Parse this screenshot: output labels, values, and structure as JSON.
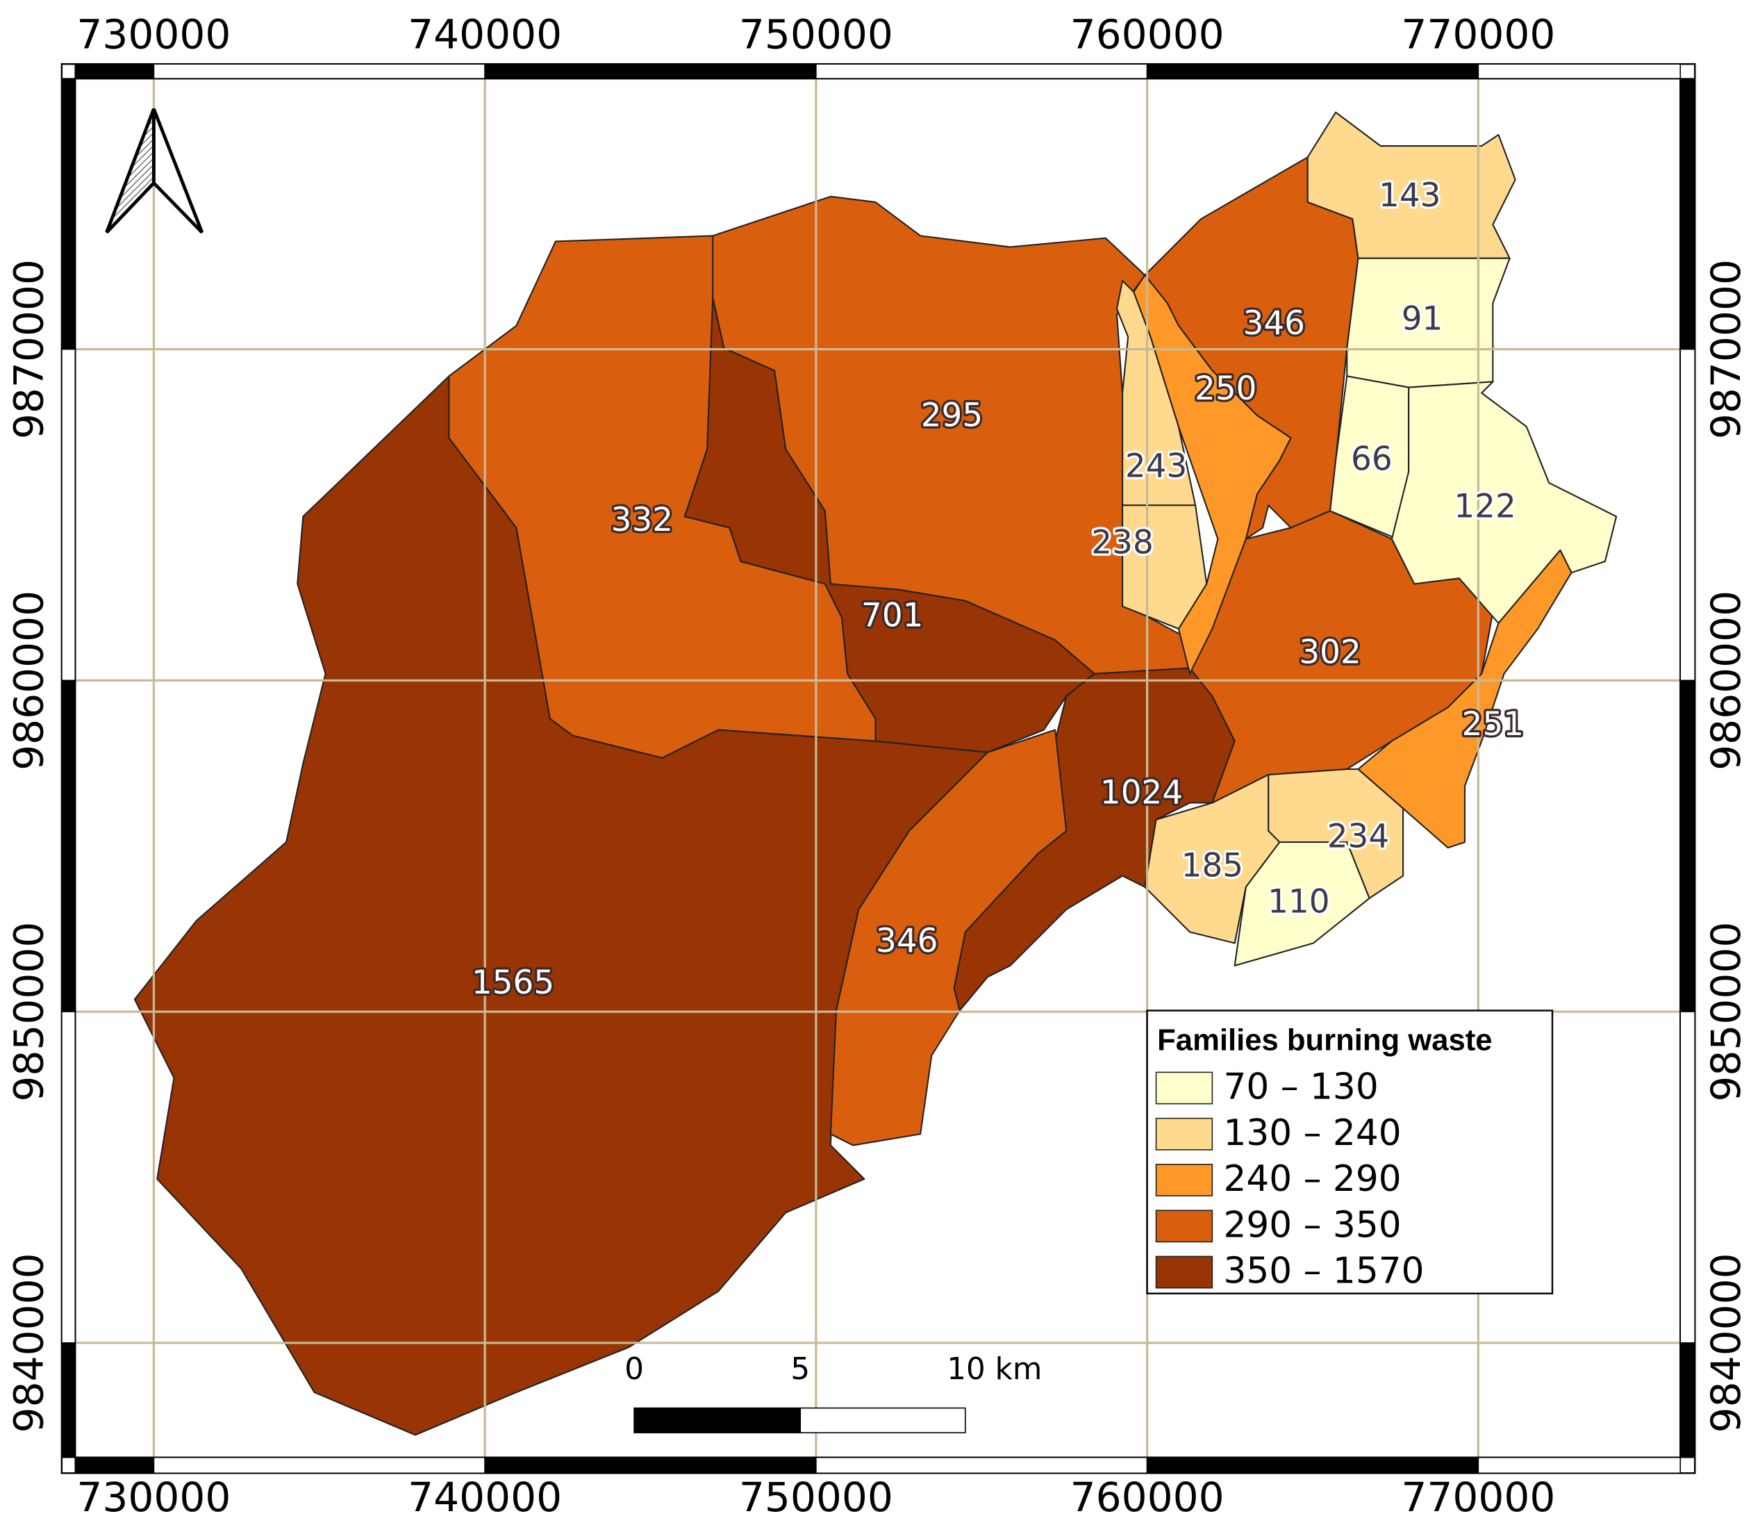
{
  "map": {
    "xlim": [
      727627,
      776102
    ],
    "ylim": [
      9836542,
      9878169
    ],
    "xticks": [
      730000,
      740000,
      750000,
      760000,
      770000
    ],
    "yticks": [
      9840000,
      9850000,
      9860000,
      9870000
    ],
    "grid": true,
    "grid_color": "#c9b996",
    "regions": [
      {
        "value": 1565,
        "class": 4
      },
      {
        "value": 332,
        "class": 3
      },
      {
        "value": 701,
        "class": 4
      },
      {
        "value": 295,
        "class": 3
      },
      {
        "value": 1024,
        "class": 4
      },
      {
        "value": 346,
        "class": 3
      },
      {
        "value": 302,
        "class": 3
      },
      {
        "value": 346,
        "class": 3
      },
      {
        "value": 250,
        "class": 2
      },
      {
        "value": 243,
        "class": 1
      },
      {
        "value": 238,
        "class": 1
      },
      {
        "value": 143,
        "class": 1
      },
      {
        "value": 91,
        "class": 0
      },
      {
        "value": 66,
        "class": 0
      },
      {
        "value": 122,
        "class": 0
      },
      {
        "value": 251,
        "class": 2
      },
      {
        "value": 234,
        "class": 1
      },
      {
        "value": 185,
        "class": 1
      },
      {
        "value": 110,
        "class": 0
      }
    ],
    "legend": {
      "title": "Families burning waste",
      "classes": [
        {
          "label": "70 – 130",
          "color": "#ffffcc"
        },
        {
          "label": "130 – 240",
          "color": "#fed98e"
        },
        {
          "label": "240 – 290",
          "color": "#fe9929"
        },
        {
          "label": "290 – 350",
          "color": "#d95f0e"
        },
        {
          "label": "350 – 1570",
          "color": "#993404"
        }
      ]
    },
    "scale_bar": {
      "labels": [
        "0",
        "5",
        "10 km"
      ]
    }
  }
}
